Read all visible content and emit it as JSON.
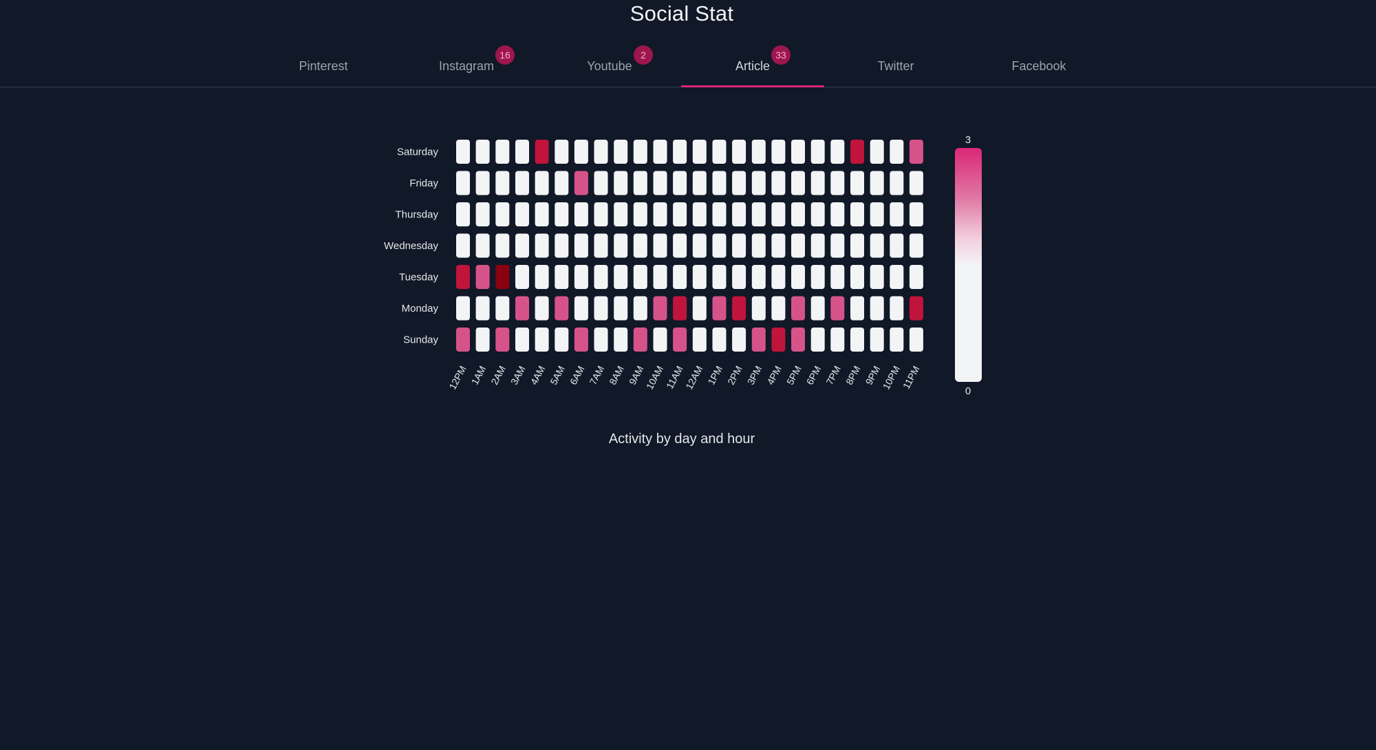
{
  "app": {
    "title": "Social Stat"
  },
  "tabs": [
    {
      "label": "Pinterest",
      "badge": null,
      "active": false
    },
    {
      "label": "Instagram",
      "badge": "16",
      "active": false
    },
    {
      "label": "Youtube",
      "badge": "2",
      "active": false
    },
    {
      "label": "Article",
      "badge": "33",
      "active": true
    },
    {
      "label": "Twitter",
      "badge": null,
      "active": false
    },
    {
      "label": "Facebook",
      "badge": null,
      "active": false
    }
  ],
  "colors": {
    "background": "#111827",
    "accent": "#db2777",
    "cell_zero": "#f3f4f6",
    "cell_one": "#d6538a",
    "cell_two": "#c0143c",
    "cell_three": "#8b0010"
  },
  "chart_data": {
    "type": "heatmap",
    "title": "Activity by day and hour",
    "x_categories": [
      "12PM",
      "1AM",
      "2AM",
      "3AM",
      "4AM",
      "5AM",
      "6AM",
      "7AM",
      "8AM",
      "9AM",
      "10AM",
      "11AM",
      "12AM",
      "1PM",
      "2PM",
      "3PM",
      "4PM",
      "5PM",
      "6PM",
      "7PM",
      "8PM",
      "9PM",
      "10PM",
      "11PM"
    ],
    "y_categories": [
      "Saturday",
      "Friday",
      "Thursday",
      "Wednesday",
      "Tuesday",
      "Monday",
      "Sunday"
    ],
    "values": [
      [
        0,
        0,
        0,
        0,
        2,
        0,
        0,
        0,
        0,
        0,
        0,
        0,
        0,
        0,
        0,
        0,
        0,
        0,
        0,
        0,
        2,
        0,
        0,
        1
      ],
      [
        0,
        0,
        0,
        0,
        0,
        0,
        1,
        0,
        0,
        0,
        0,
        0,
        0,
        0,
        0,
        0,
        0,
        0,
        0,
        0,
        0,
        0,
        0,
        0
      ],
      [
        0,
        0,
        0,
        0,
        0,
        0,
        0,
        0,
        0,
        0,
        0,
        0,
        0,
        0,
        0,
        0,
        0,
        0,
        0,
        0,
        0,
        0,
        0,
        0
      ],
      [
        0,
        0,
        0,
        0,
        0,
        0,
        0,
        0,
        0,
        0,
        0,
        0,
        0,
        0,
        0,
        0,
        0,
        0,
        0,
        0,
        0,
        0,
        0,
        0
      ],
      [
        2,
        1,
        3,
        0,
        0,
        0,
        0,
        0,
        0,
        0,
        0,
        0,
        0,
        0,
        0,
        0,
        0,
        0,
        0,
        0,
        0,
        0,
        0,
        0
      ],
      [
        0,
        0,
        0,
        1,
        0,
        1,
        0,
        0,
        0,
        0,
        1,
        2,
        0,
        1,
        2,
        0,
        0,
        1,
        0,
        1,
        0,
        0,
        0,
        2
      ],
      [
        1,
        0,
        1,
        0,
        0,
        0,
        1,
        0,
        0,
        1,
        0,
        1,
        0,
        0,
        0,
        1,
        2,
        1,
        0,
        0,
        0,
        0,
        0,
        0
      ]
    ],
    "scale": {
      "min": 0,
      "max": 3,
      "max_label": "3",
      "min_label": "0"
    }
  }
}
